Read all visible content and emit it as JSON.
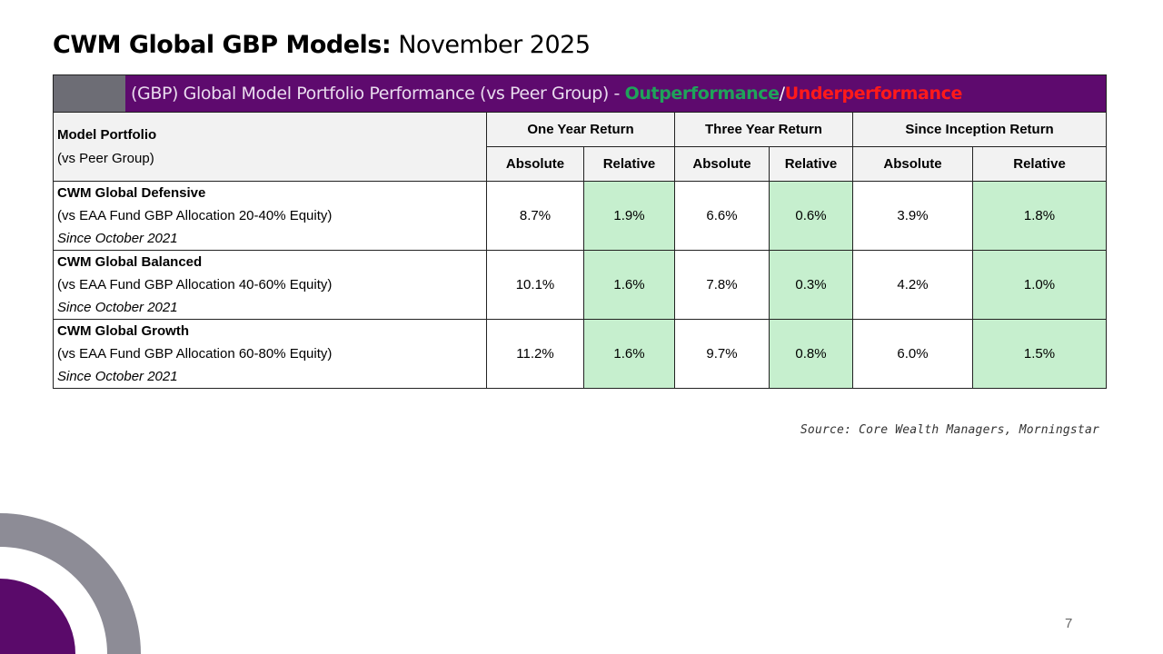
{
  "slide": {
    "title_bold": "CWM Global GBP Models:",
    "title_rest": " November 2025",
    "source": "Source: Core Wealth Managers, Morningstar",
    "page_number": "7"
  },
  "colors": {
    "banner": "#5e0a6e",
    "outperformance": "#1fa35a",
    "underperformance": "#ff1a1a",
    "relative_cell": "#c6efce",
    "accent_ring": "#8d8c96"
  },
  "table": {
    "banner_text": "(GBP) Global Model Portfolio Performance (vs Peer Group) - ",
    "banner_out": "Outperformance",
    "banner_sep": "/",
    "banner_under": "Underperformance",
    "col_header": "Model Portfolio",
    "col_subheader": "(vs Peer Group)",
    "groups": [
      "One Year Return",
      "Three Year Return",
      "Since Inception Return"
    ],
    "subcols": [
      "Absolute",
      "Relative",
      "Absolute",
      "Relative",
      "Absolute",
      "Relative"
    ],
    "rows": [
      {
        "name": "CWM Global Defensive",
        "peer": "(vs EAA Fund GBP Allocation 20-40% Equity)",
        "since": "Since October 2021",
        "values": [
          "8.7%",
          "1.9%",
          "6.6%",
          "0.6%",
          "3.9%",
          "1.8%"
        ]
      },
      {
        "name": "CWM Global Balanced",
        "peer": "(vs EAA Fund GBP Allocation 40-60% Equity)",
        "since": "Since October 2021",
        "values": [
          "10.1%",
          "1.6%",
          "7.8%",
          "0.3%",
          "4.2%",
          "1.0%"
        ]
      },
      {
        "name": "CWM Global Growth",
        "peer": "(vs EAA Fund GBP Allocation 60-80% Equity)",
        "since": "Since October 2021",
        "values": [
          "11.2%",
          "1.6%",
          "9.7%",
          "0.8%",
          "6.0%",
          "1.5%"
        ]
      }
    ]
  }
}
